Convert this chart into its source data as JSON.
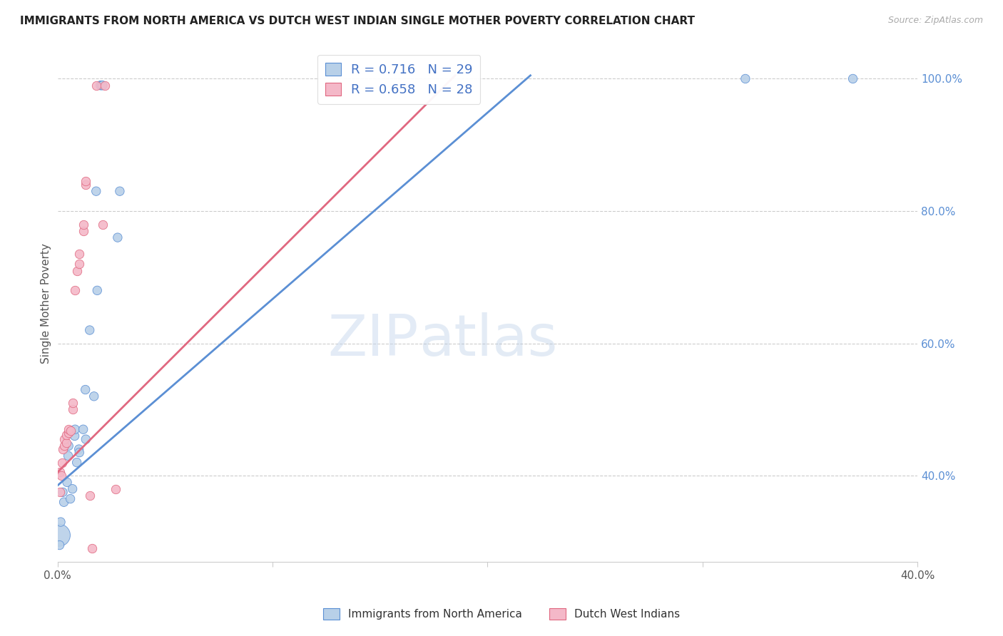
{
  "title": "IMMIGRANTS FROM NORTH AMERICA VS DUTCH WEST INDIAN SINGLE MOTHER POVERTY CORRELATION CHART",
  "source": "Source: ZipAtlas.com",
  "ylabel": "Single Mother Poverty",
  "y_tick_labels": [
    "40.0%",
    "60.0%",
    "80.0%",
    "100.0%"
  ],
  "y_tick_values": [
    0.4,
    0.6,
    0.8,
    1.0
  ],
  "x_min": 0.0,
  "x_max": 0.4,
  "y_min": 0.27,
  "y_max": 1.05,
  "legend_label_blue": "Immigrants from North America",
  "legend_label_pink": "Dutch West Indians",
  "R_blue": 0.716,
  "N_blue": 29,
  "R_pink": 0.658,
  "N_pink": 28,
  "blue_color": "#b8d0e8",
  "blue_line_color": "#5b8fd4",
  "pink_color": "#f4b8c8",
  "pink_line_color": "#e06880",
  "watermark_zip": "ZIP",
  "watermark_atlas": "atlas",
  "blue_line_x0": 0.0,
  "blue_line_y0": 0.385,
  "blue_line_x1": 0.22,
  "blue_line_y1": 1.005,
  "pink_line_x0": 0.0,
  "pink_line_y0": 0.405,
  "pink_line_x1": 0.185,
  "pink_line_y1": 1.005,
  "blue_points": [
    [
      0.0008,
      0.31
    ],
    [
      0.001,
      0.295
    ],
    [
      0.0015,
      0.33
    ],
    [
      0.0025,
      0.375
    ],
    [
      0.003,
      0.36
    ],
    [
      0.0045,
      0.39
    ],
    [
      0.005,
      0.43
    ],
    [
      0.0052,
      0.445
    ],
    [
      0.006,
      0.365
    ],
    [
      0.007,
      0.38
    ],
    [
      0.008,
      0.46
    ],
    [
      0.0082,
      0.47
    ],
    [
      0.009,
      0.42
    ],
    [
      0.01,
      0.44
    ],
    [
      0.0102,
      0.435
    ],
    [
      0.012,
      0.47
    ],
    [
      0.013,
      0.53
    ],
    [
      0.0132,
      0.455
    ],
    [
      0.015,
      0.62
    ],
    [
      0.017,
      0.52
    ],
    [
      0.018,
      0.83
    ],
    [
      0.0185,
      0.68
    ],
    [
      0.02,
      0.99
    ],
    [
      0.0205,
      0.99
    ],
    [
      0.021,
      0.99
    ],
    [
      0.028,
      0.76
    ],
    [
      0.029,
      0.83
    ],
    [
      0.32,
      1.0
    ],
    [
      0.37,
      1.0
    ]
  ],
  "blue_sizes": [
    80,
    80,
    80,
    80,
    80,
    80,
    80,
    80,
    80,
    80,
    80,
    80,
    80,
    80,
    80,
    80,
    80,
    80,
    80,
    80,
    80,
    80,
    80,
    80,
    80,
    80,
    80,
    80,
    80
  ],
  "blue_large_idx": 0,
  "blue_large_size": 500,
  "pink_points": [
    [
      0.001,
      0.375
    ],
    [
      0.0012,
      0.405
    ],
    [
      0.0018,
      0.4
    ],
    [
      0.0022,
      0.42
    ],
    [
      0.0025,
      0.44
    ],
    [
      0.003,
      0.445
    ],
    [
      0.0032,
      0.455
    ],
    [
      0.004,
      0.45
    ],
    [
      0.0042,
      0.462
    ],
    [
      0.005,
      0.465
    ],
    [
      0.0052,
      0.47
    ],
    [
      0.006,
      0.468
    ],
    [
      0.007,
      0.5
    ],
    [
      0.0072,
      0.51
    ],
    [
      0.008,
      0.68
    ],
    [
      0.009,
      0.71
    ],
    [
      0.01,
      0.72
    ],
    [
      0.0102,
      0.735
    ],
    [
      0.012,
      0.77
    ],
    [
      0.0122,
      0.78
    ],
    [
      0.013,
      0.84
    ],
    [
      0.0132,
      0.845
    ],
    [
      0.015,
      0.37
    ],
    [
      0.016,
      0.29
    ],
    [
      0.018,
      0.99
    ],
    [
      0.021,
      0.78
    ],
    [
      0.022,
      0.99
    ],
    [
      0.027,
      0.38
    ]
  ]
}
